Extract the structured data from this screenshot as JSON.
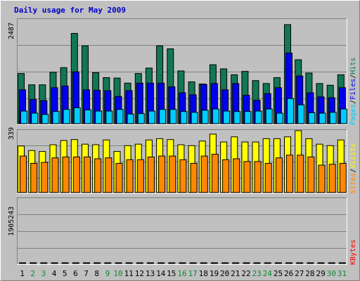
{
  "title": "Daily usage for May 2009",
  "colors": {
    "title": "#0000cc",
    "frame_bg": "#c0c0c0",
    "plot_bg": "#c0c0c0",
    "grid": "#808080",
    "hits": "#117755",
    "files": "#0000ee",
    "pages": "#00ccff",
    "visits": "#ffff00",
    "sites": "#ff8800",
    "kbytes": "#ff0000",
    "weekday_label": "#000000",
    "weekend_label": "#118833",
    "legend_sep": "#000000"
  },
  "chart_data": [
    {
      "type": "bar",
      "panel": "hits-files-pages",
      "ymax_label": "2487",
      "ylim": [
        0,
        2487
      ],
      "legend": [
        {
          "label": "Pages",
          "color_key": "pages"
        },
        {
          "label": "Files",
          "color_key": "files"
        },
        {
          "label": "Hits",
          "color_key": "hits"
        }
      ],
      "categories": [
        "1",
        "2",
        "3",
        "4",
        "5",
        "6",
        "7",
        "8",
        "9",
        "10",
        "11",
        "12",
        "13",
        "14",
        "15",
        "16",
        "17",
        "18",
        "19",
        "20",
        "21",
        "22",
        "23",
        "24",
        "25",
        "26",
        "27",
        "28",
        "29",
        "30",
        "31"
      ],
      "series": [
        {
          "name": "Hits",
          "color_key": "hits",
          "values": [
            1200,
            930,
            930,
            1230,
            1340,
            2160,
            1860,
            1220,
            1100,
            1090,
            970,
            1200,
            1330,
            1860,
            1790,
            1260,
            1000,
            950,
            1410,
            1310,
            1170,
            1250,
            1030,
            960,
            1100,
            2370,
            1530,
            1210,
            960,
            920,
            1170
          ]
        },
        {
          "name": "Files",
          "color_key": "files",
          "values": [
            810,
            580,
            550,
            860,
            900,
            1240,
            810,
            800,
            790,
            650,
            790,
            970,
            970,
            970,
            880,
            740,
            690,
            940,
            960,
            810,
            960,
            680,
            560,
            720,
            860,
            1690,
            1140,
            740,
            640,
            620,
            860
          ]
        },
        {
          "name": "Pages",
          "color_key": "pages",
          "values": [
            300,
            250,
            220,
            290,
            340,
            380,
            330,
            300,
            300,
            340,
            230,
            240,
            300,
            340,
            340,
            290,
            270,
            320,
            350,
            300,
            290,
            290,
            300,
            350,
            250,
            600,
            450,
            260,
            250,
            270,
            350
          ]
        }
      ]
    },
    {
      "type": "bar",
      "panel": "visits-sites",
      "ymax_label": "339",
      "ylim": [
        0,
        339
      ],
      "legend": [
        {
          "label": "Sites",
          "color_key": "sites"
        },
        {
          "label": "Visits",
          "color_key": "visits"
        }
      ],
      "categories": [
        "1",
        "2",
        "3",
        "4",
        "5",
        "6",
        "7",
        "8",
        "9",
        "10",
        "11",
        "12",
        "13",
        "14",
        "15",
        "16",
        "17",
        "18",
        "19",
        "20",
        "21",
        "22",
        "23",
        "24",
        "25",
        "26",
        "27",
        "28",
        "29",
        "30",
        "31"
      ],
      "series": [
        {
          "name": "Visits",
          "color_key": "visits",
          "values": [
            255,
            230,
            225,
            262,
            285,
            290,
            265,
            262,
            288,
            225,
            257,
            265,
            288,
            295,
            290,
            262,
            257,
            282,
            320,
            277,
            305,
            277,
            277,
            295,
            295,
            305,
            342,
            295,
            265,
            257,
            288
          ]
        },
        {
          "name": "Sites",
          "color_key": "sites",
          "values": [
            200,
            160,
            165,
            190,
            195,
            195,
            195,
            185,
            190,
            160,
            180,
            180,
            195,
            200,
            200,
            180,
            160,
            200,
            210,
            180,
            185,
            170,
            170,
            160,
            190,
            205,
            205,
            195,
            150,
            155,
            160
          ]
        }
      ]
    },
    {
      "type": "bar",
      "panel": "kbytes",
      "ymax_label": "1905243",
      "ylim": [
        0,
        1905243
      ],
      "legend": [
        {
          "label": "KBytes",
          "color_key": "kbytes"
        }
      ],
      "categories": [
        "1",
        "2",
        "3",
        "4",
        "5",
        "6",
        "7",
        "8",
        "9",
        "10",
        "11",
        "12",
        "13",
        "14",
        "15",
        "16",
        "17",
        "18",
        "19",
        "20",
        "21",
        "22",
        "23",
        "24",
        "25",
        "26",
        "27",
        "28",
        "29",
        "30",
        "31"
      ],
      "series": [
        {
          "name": "KBytes",
          "color_key": "kbytes",
          "values": [
            480,
            680,
            990,
            390,
            1030,
            1500,
            1150,
            590,
            1580,
            470,
            780,
            1240,
            890,
            610,
            480,
            350,
            450,
            590,
            860,
            680,
            650,
            590,
            200,
            910,
            330,
            1820,
            950,
            1150,
            720,
            500,
            1110
          ]
        }
      ]
    }
  ],
  "x_labels": [
    {
      "text": "1",
      "weekend": false
    },
    {
      "text": "2",
      "weekend": true
    },
    {
      "text": "3",
      "weekend": true
    },
    {
      "text": "4",
      "weekend": false
    },
    {
      "text": "5",
      "weekend": false
    },
    {
      "text": "6",
      "weekend": false
    },
    {
      "text": "7",
      "weekend": false
    },
    {
      "text": "8",
      "weekend": false
    },
    {
      "text": "9",
      "weekend": true
    },
    {
      "text": "10",
      "weekend": true
    },
    {
      "text": "11",
      "weekend": false
    },
    {
      "text": "12",
      "weekend": false
    },
    {
      "text": "13",
      "weekend": false
    },
    {
      "text": "14",
      "weekend": false
    },
    {
      "text": "15",
      "weekend": false
    },
    {
      "text": "16",
      "weekend": true
    },
    {
      "text": "17",
      "weekend": true
    },
    {
      "text": "18",
      "weekend": false
    },
    {
      "text": "19",
      "weekend": false
    },
    {
      "text": "20",
      "weekend": false
    },
    {
      "text": "21",
      "weekend": false
    },
    {
      "text": "22",
      "weekend": false
    },
    {
      "text": "23",
      "weekend": true
    },
    {
      "text": "24",
      "weekend": true
    },
    {
      "text": "25",
      "weekend": false
    },
    {
      "text": "26",
      "weekend": false
    },
    {
      "text": "27",
      "weekend": false
    },
    {
      "text": "28",
      "weekend": false
    },
    {
      "text": "29",
      "weekend": false
    },
    {
      "text": "30",
      "weekend": true
    },
    {
      "text": "31",
      "weekend": true
    }
  ]
}
